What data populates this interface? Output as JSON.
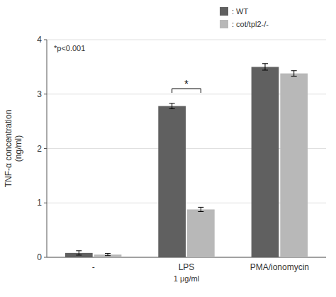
{
  "chart_data": {
    "type": "bar",
    "categories": [
      "-",
      "LPS",
      "PMA/ionomycin"
    ],
    "series": [
      {
        "name": ": WT",
        "color": "#606060",
        "values": [
          0.08,
          2.78,
          3.5
        ],
        "errors": [
          0.04,
          0.05,
          0.06
        ]
      },
      {
        "name": ": cot/tpl2-/-",
        "color": "#b8b8b8",
        "values": [
          0.05,
          0.88,
          3.38
        ],
        "errors": [
          0.02,
          0.04,
          0.05
        ]
      }
    ],
    "y_label": "TNF-α concentration\n(ng/ml)",
    "ylim": [
      0,
      4
    ],
    "yticks": [
      0,
      1,
      2,
      3,
      4
    ],
    "grid": true,
    "legend": "upper right",
    "annotations": [
      {
        "text": "1 μg/ml",
        "category": 1
      },
      {
        "text": "*",
        "category": 1,
        "y": 3.1
      },
      {
        "text": "*p<0.001"
      }
    ]
  }
}
